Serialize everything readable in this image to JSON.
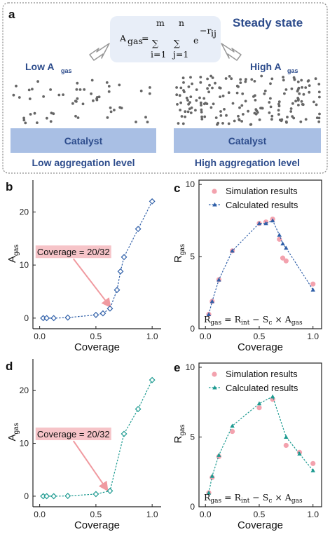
{
  "panel_a": {
    "label": "a",
    "state_title": "Steady state",
    "formula": {
      "lhs": "A",
      "lhs_sub": "gas",
      "eq": "=",
      "sum1_top": "m",
      "sum1_bot": "i=1",
      "sum2_top": "n",
      "sum2_bot": "j=1",
      "base": "e",
      "exponent": "−r",
      "exponent_sub": "ij"
    },
    "low_label": "Low A",
    "low_label_sub": "gas",
    "high_label": "High A",
    "high_label_sub": "gas",
    "catalyst_left": "Catalyst",
    "catalyst_right": "Catalyst",
    "caption_left": "Low aggregation level",
    "caption_right": "High aggregation level",
    "colors": {
      "border": "#8e8e8e",
      "formula_bg": "#e8eef8",
      "catalyst": "#a9bfe4",
      "text": "#2d4c8c",
      "dots": "#666666",
      "arrow": "#999999"
    }
  },
  "chart_data": [
    {
      "panel": "b",
      "type": "line",
      "color": "#2f5fa8",
      "marker": "diamond",
      "xlabel": "Coverage",
      "ylabel": "A",
      "ylabel_sub": "gas",
      "xlim": [
        -0.06,
        1.08
      ],
      "ylim": [
        -2,
        26
      ],
      "xticks": [
        0.0,
        0.5,
        1.0
      ],
      "yticks": [
        0,
        10,
        20
      ],
      "x": [
        0.03125,
        0.0625,
        0.125,
        0.25,
        0.5,
        0.5625,
        0.625,
        0.6875,
        0.71875,
        0.75,
        0.875,
        1.0
      ],
      "y": [
        0,
        0,
        0,
        0.1,
        0.6,
        0.9,
        1.8,
        5.3,
        8.8,
        11.5,
        16.8,
        22
      ],
      "annotation": {
        "text": "Coverage = 20/32",
        "bg": "#f6c4c8",
        "arrow_color": "#f09aa0",
        "from_xy": [
          0.3,
          12.5
        ],
        "to_xy": [
          0.625,
          2.2
        ]
      }
    },
    {
      "panel": "c",
      "type": "line",
      "color": "#2f5fa8",
      "marker": "triangle",
      "xlabel": "Coverage",
      "ylabel": "R",
      "ylabel_sub": "gas",
      "xlim": [
        -0.06,
        1.08
      ],
      "ylim": [
        0,
        10.3
      ],
      "xticks": [
        0.0,
        0.5,
        1.0
      ],
      "yticks": [
        0,
        5,
        10
      ],
      "legend": [
        "Simulation results",
        "Calculated results"
      ],
      "legend_position": "top-left",
      "sim_color": "#f3a2ae",
      "calc_x": [
        0.03125,
        0.0625,
        0.125,
        0.25,
        0.5,
        0.5625,
        0.625,
        0.6875,
        0.71875,
        0.75,
        1.0
      ],
      "calc_y": [
        1.0,
        1.9,
        3.4,
        5.4,
        7.3,
        7.3,
        7.5,
        6.5,
        5.9,
        5.6,
        2.7
      ],
      "sim_x": [
        0.03125,
        0.0625,
        0.125,
        0.25,
        0.5,
        0.5625,
        0.625,
        0.6875,
        0.71875,
        0.75,
        1.0
      ],
      "sim_y": [
        1.0,
        1.9,
        3.4,
        5.4,
        7.3,
        7.4,
        7.6,
        6.2,
        4.9,
        4.7,
        3.1
      ],
      "equation": {
        "lhs": "R",
        "lhs_sub": "gas",
        "eq": " = ",
        "t1": "R",
        "t1_sub": "int",
        "minus": " − ",
        "t2": "S",
        "t2_sub": "c",
        "times": " × ",
        "t3": "A",
        "t3_sub": "gas"
      }
    },
    {
      "panel": "d",
      "type": "line",
      "color": "#1c9a90",
      "marker": "diamond",
      "xlabel": "Coverage",
      "ylabel": "A",
      "ylabel_sub": "gas",
      "xlim": [
        -0.06,
        1.08
      ],
      "ylim": [
        -2,
        26
      ],
      "xticks": [
        0.0,
        0.5,
        1.0
      ],
      "yticks": [
        0,
        10,
        20
      ],
      "x": [
        0.03125,
        0.0625,
        0.125,
        0.25,
        0.5,
        0.625,
        0.75,
        0.875,
        1.0
      ],
      "y": [
        0,
        0,
        0,
        0.05,
        0.4,
        1.0,
        11.8,
        16.5,
        22
      ],
      "annotation": {
        "text": "Coverage = 20/32",
        "bg": "#f6c4c8",
        "arrow_color": "#f09aa0",
        "from_xy": [
          0.3,
          11.8
        ],
        "to_xy": [
          0.6,
          1.2
        ]
      }
    },
    {
      "panel": "e",
      "type": "line",
      "color": "#1c9a90",
      "marker": "triangle",
      "xlabel": "Coverage",
      "ylabel": "R",
      "ylabel_sub": "gas",
      "xlim": [
        -0.06,
        1.08
      ],
      "ylim": [
        0,
        10.3
      ],
      "xticks": [
        0.0,
        0.5,
        1.0
      ],
      "yticks": [
        0,
        5,
        10
      ],
      "legend": [
        "Simulation results",
        "Calculated results"
      ],
      "legend_position": "top-left",
      "sim_color": "#f3a2ae",
      "calc_x": [
        0.03125,
        0.0625,
        0.125,
        0.25,
        0.5,
        0.625,
        0.75,
        0.875,
        1.0
      ],
      "calc_y": [
        1.0,
        2.2,
        3.7,
        5.8,
        7.4,
        7.9,
        5.0,
        3.8,
        2.6
      ],
      "sim_x": [
        0.03125,
        0.0625,
        0.125,
        0.25,
        0.5,
        0.625,
        0.75,
        0.875,
        1.0
      ],
      "sim_y": [
        1.0,
        2.1,
        3.6,
        5.4,
        7.1,
        7.7,
        4.4,
        3.9,
        3.1
      ],
      "equation": {
        "lhs": "R",
        "lhs_sub": "gas",
        "eq": " = ",
        "t1": "R",
        "t1_sub": "int",
        "minus": " − ",
        "t2": "S",
        "t2_sub": "c",
        "times": " × ",
        "t3": "A",
        "t3_sub": "gas"
      }
    }
  ]
}
